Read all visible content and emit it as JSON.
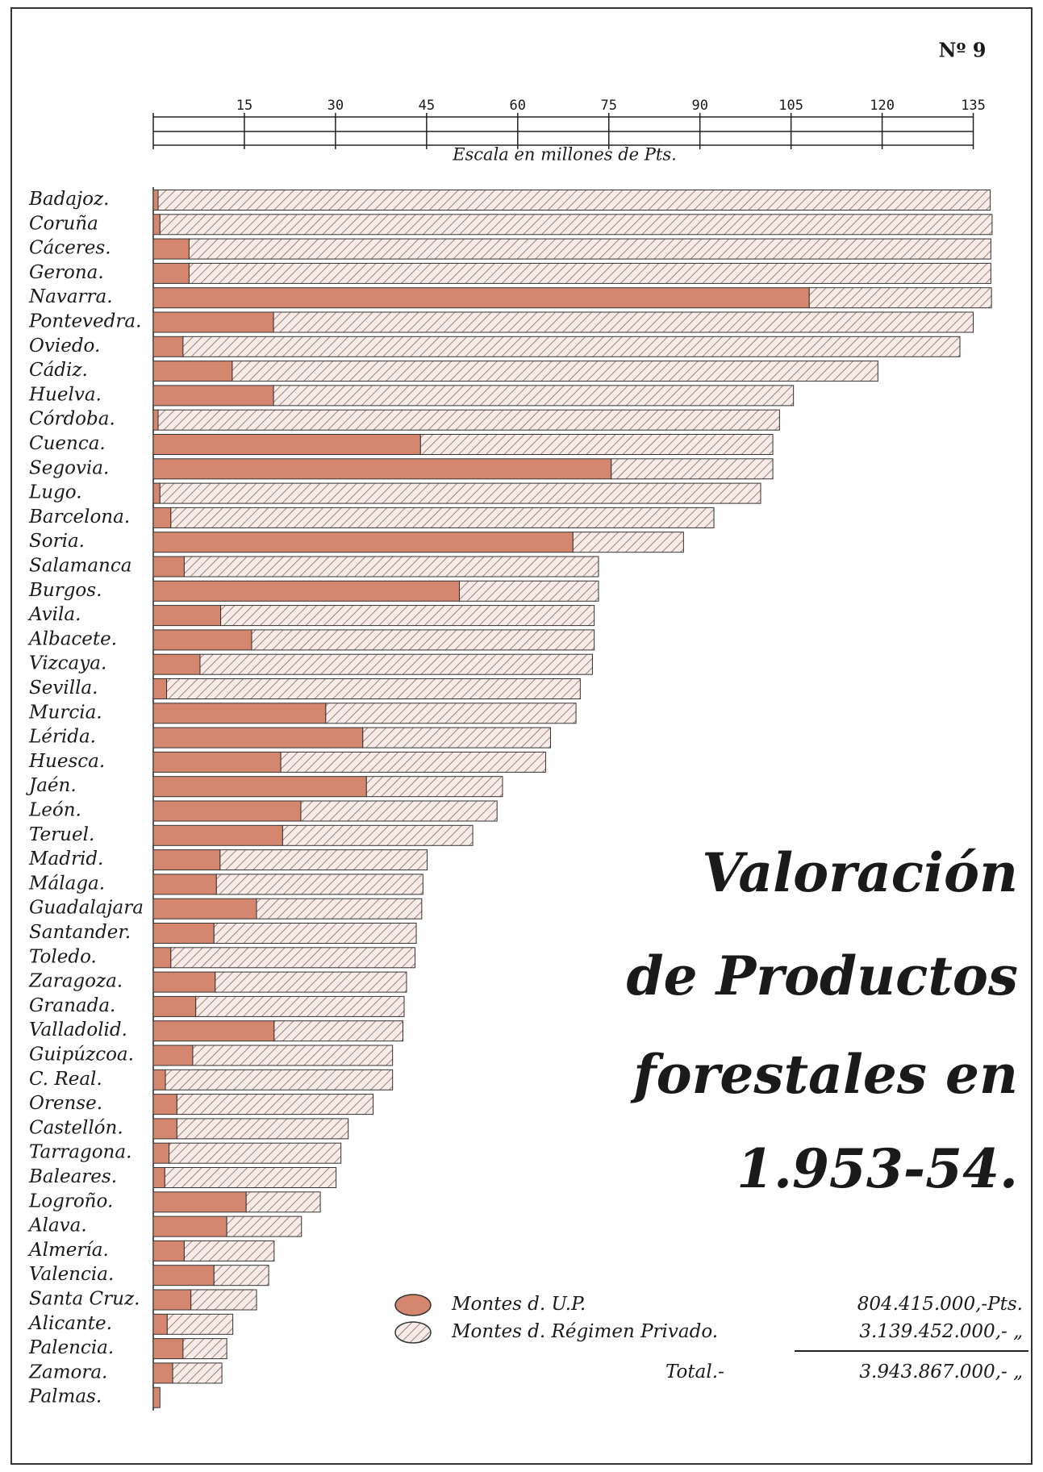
{
  "chart_data": {
    "type": "bar",
    "orientation": "horizontal",
    "stacked": true,
    "number": "Nº 9",
    "title_lines": [
      "Valoración",
      "de Productos",
      "forestales en",
      "1.953-54."
    ],
    "xlabel": "Escala en millones de Pts.",
    "xlim": [
      0,
      140
    ],
    "xticks": [
      15,
      30,
      45,
      60,
      75,
      90,
      105,
      120,
      135
    ],
    "categories": [
      "Badajoz.",
      "Coruña",
      "Cáceres.",
      "Gerona.",
      "Navarra.",
      "Pontevedra.",
      "Oviedo.",
      "Cádiz.",
      "Huelva.",
      "Córdoba.",
      "Cuenca.",
      "Segovia.",
      "Lugo.",
      "Barcelona.",
      "Soria.",
      "Salamanca",
      "Burgos.",
      "Avila.",
      "Albacete.",
      "Vizcaya.",
      "Sevilla.",
      "Murcia.",
      "Lérida.",
      "Huesca.",
      "Jaén.",
      "León.",
      "Teruel.",
      "Madrid.",
      "Málaga.",
      "Guadalajara",
      "Santander.",
      "Toledo.",
      "Zaragoza.",
      "Granada.",
      "Valladolid.",
      "Guipúzcoa.",
      "C. Real.",
      "Orense.",
      "Castellón.",
      "Tarragona.",
      "Baleares.",
      "Logroño.",
      "Alava.",
      "Almería.",
      "Valencia.",
      "Santa Cruz.",
      "Alicante.",
      "Palencia.",
      "Zamora.",
      "Palmas."
    ],
    "series": [
      {
        "name": "Montes d. U.P.",
        "color": "#d4876e",
        "total_label": "804.415.000,-Pts.",
        "values": [
          0.8,
          1.1,
          5.9,
          5.9,
          108,
          19.8,
          4.9,
          13,
          19.8,
          0.8,
          44,
          75.4,
          1.1,
          2.9,
          69.1,
          5.1,
          50.4,
          11.1,
          16.2,
          7.7,
          2.2,
          28.4,
          34.5,
          21,
          35.1,
          24.3,
          21.3,
          11,
          10.4,
          17,
          10,
          2.9,
          10.2,
          7,
          19.9,
          6.5,
          2,
          3.9,
          3.9,
          2.6,
          1.9,
          15.3,
          12.1,
          5.1,
          10,
          6.2,
          2.3,
          4.9,
          3.2,
          1.1
        ]
      },
      {
        "name": "Montes d. Régimen Privado.",
        "color": "#b07a6a",
        "pattern": "hatch",
        "total_label": "3.139.452.000,- „",
        "values": [
          137,
          137,
          132,
          132,
          30,
          115.2,
          127.9,
          106.3,
          85.6,
          102.3,
          58,
          26.6,
          98.9,
          89.4,
          18.2,
          68.2,
          22.9,
          61.5,
          56.4,
          64.6,
          68.1,
          41.2,
          30.9,
          43.6,
          22.4,
          32.3,
          31.3,
          34.1,
          34,
          27.2,
          33.3,
          40.2,
          31.5,
          34.3,
          21.2,
          32.9,
          37.4,
          32.3,
          28.2,
          28.3,
          28.2,
          12.2,
          12.3,
          14.8,
          9,
          10.8,
          10.8,
          7.2,
          8.1,
          0
        ]
      }
    ],
    "total": {
      "label": "Total.-",
      "value": "3.943.867.000,- „"
    }
  }
}
